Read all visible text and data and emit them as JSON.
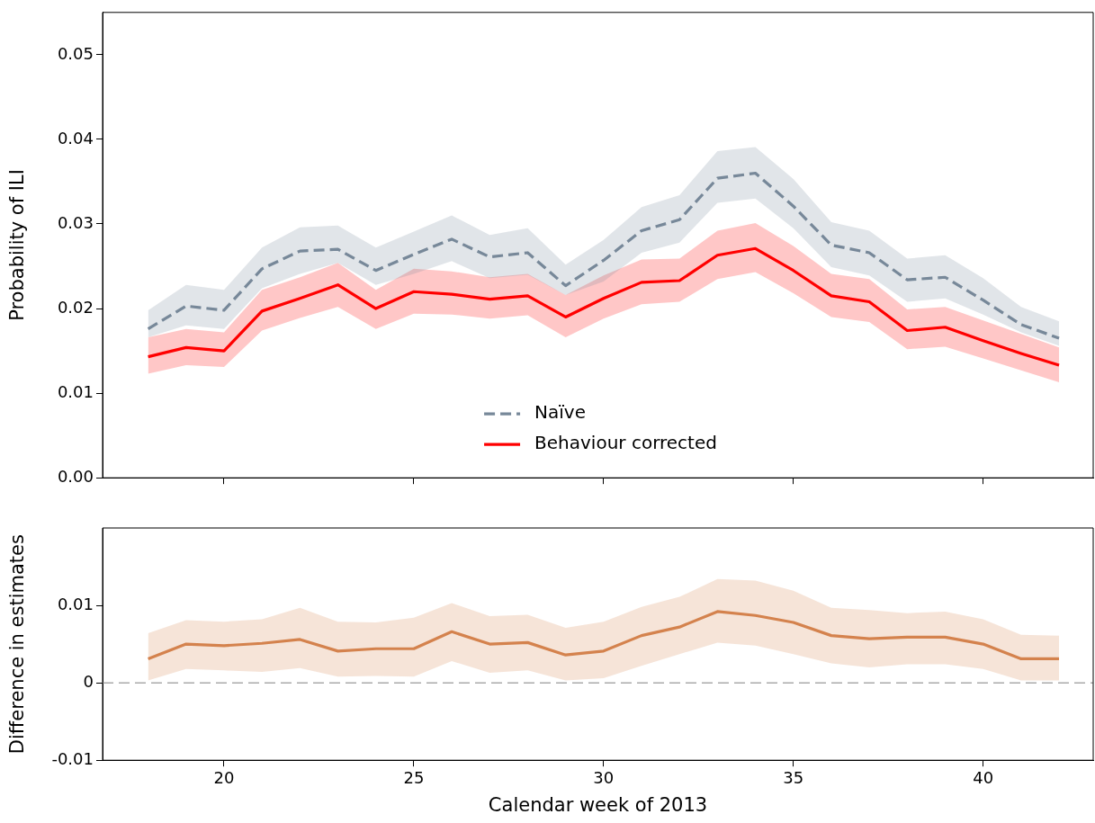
{
  "chart_data": [
    {
      "type": "line",
      "ylabel": "Probability of ILI",
      "x": [
        18,
        19,
        20,
        21,
        22,
        23,
        24,
        25,
        26,
        27,
        28,
        29,
        30,
        31,
        32,
        33,
        34,
        35,
        36,
        37,
        38,
        39,
        40,
        41,
        42
      ],
      "xlim": [
        16.8,
        42.9
      ],
      "xticks": [
        20,
        25,
        30,
        35,
        40
      ],
      "ylim": [
        0,
        0.055
      ],
      "yticks": [
        {
          "value": 0,
          "label": "0.00"
        },
        0.01,
        0.02,
        0.03,
        0.04,
        0.05
      ],
      "tick_labels": "y",
      "legend": "bottom",
      "grid": false,
      "series": [
        {
          "name": "Naïve",
          "color": "#778899",
          "line_style": "dashed",
          "values": [
            0.0176,
            0.0203,
            0.0198,
            0.0247,
            0.0268,
            0.027,
            0.0245,
            0.0264,
            0.0282,
            0.0261,
            0.0266,
            0.0227,
            0.0257,
            0.0292,
            0.0305,
            0.0354,
            0.036,
            0.0321,
            0.0275,
            0.0266,
            0.0234,
            0.0237,
            0.021,
            0.0181,
            0.0165
          ],
          "upper": [
            0.0198,
            0.0228,
            0.0222,
            0.0272,
            0.0296,
            0.0298,
            0.0272,
            0.0291,
            0.031,
            0.0287,
            0.0295,
            0.0252,
            0.0281,
            0.032,
            0.0334,
            0.0386,
            0.0391,
            0.0353,
            0.0302,
            0.0292,
            0.0259,
            0.0263,
            0.0236,
            0.0202,
            0.0185
          ],
          "lower": [
            0.0166,
            0.018,
            0.0176,
            0.0224,
            0.0241,
            0.0254,
            0.0228,
            0.0241,
            0.0256,
            0.0236,
            0.024,
            0.0216,
            0.0232,
            0.0266,
            0.0278,
            0.0325,
            0.033,
            0.0295,
            0.0249,
            0.0239,
            0.0208,
            0.0212,
            0.0193,
            0.0172,
            0.0156
          ]
        },
        {
          "name": "Behaviour corrected",
          "color": "#ff0000",
          "line_style": "solid",
          "values": [
            0.0143,
            0.0154,
            0.015,
            0.0197,
            0.0212,
            0.0228,
            0.02,
            0.022,
            0.0217,
            0.0211,
            0.0215,
            0.019,
            0.0212,
            0.0231,
            0.0233,
            0.0263,
            0.0271,
            0.0245,
            0.0215,
            0.0208,
            0.0174,
            0.0178,
            0.0162,
            0.0147,
            0.0133
          ],
          "upper": [
            0.0166,
            0.0176,
            0.0172,
            0.0222,
            0.0237,
            0.0254,
            0.0222,
            0.0247,
            0.0244,
            0.0237,
            0.0241,
            0.0216,
            0.0239,
            0.0258,
            0.0259,
            0.0292,
            0.0301,
            0.0274,
            0.0241,
            0.0235,
            0.0199,
            0.0202,
            0.0186,
            0.017,
            0.0154
          ],
          "lower": [
            0.0123,
            0.0133,
            0.0131,
            0.0174,
            0.0189,
            0.0202,
            0.0176,
            0.0194,
            0.0193,
            0.0188,
            0.0192,
            0.0166,
            0.0188,
            0.0205,
            0.0208,
            0.0235,
            0.0243,
            0.0218,
            0.019,
            0.0184,
            0.0152,
            0.0155,
            0.0141,
            0.0127,
            0.0113
          ]
        }
      ]
    },
    {
      "type": "line",
      "xlabel": "Calendar week of 2013",
      "ylabel": "Difference in estimates",
      "x": [
        18,
        19,
        20,
        21,
        22,
        23,
        24,
        25,
        26,
        27,
        28,
        29,
        30,
        31,
        32,
        33,
        34,
        35,
        36,
        37,
        38,
        39,
        40,
        41,
        42
      ],
      "xlim": [
        16.8,
        42.9
      ],
      "xticks": [
        20,
        25,
        30,
        35,
        40
      ],
      "ylim": [
        -0.01,
        0.02
      ],
      "yticks": [
        -0.01,
        0,
        0.01
      ],
      "grid": false,
      "ref_lines": [
        {
          "axis": "y",
          "value": 0,
          "color": "#aaaaaa",
          "line_style": "dashed"
        }
      ],
      "series": [
        {
          "color": "#d4824d",
          "line_style": "solid",
          "values": [
            0.0031,
            0.005,
            0.0048,
            0.0051,
            0.0056,
            0.0041,
            0.0044,
            0.0044,
            0.0066,
            0.005,
            0.0052,
            0.0036,
            0.0041,
            0.0061,
            0.0072,
            0.0092,
            0.0087,
            0.0078,
            0.0061,
            0.0057,
            0.0059,
            0.0059,
            0.005,
            0.0031,
            0.0031
          ],
          "upper": [
            0.0064,
            0.0081,
            0.0079,
            0.0082,
            0.0097,
            0.0079,
            0.0078,
            0.0084,
            0.0103,
            0.0086,
            0.0088,
            0.0071,
            0.0079,
            0.0098,
            0.0111,
            0.0134,
            0.0132,
            0.0119,
            0.0097,
            0.0094,
            0.009,
            0.0092,
            0.0082,
            0.0062,
            0.0061
          ],
          "lower": [
            0.0003,
            0.0018,
            0.0016,
            0.0014,
            0.0019,
            0.0008,
            0.0009,
            0.0008,
            0.0028,
            0.0013,
            0.0016,
            0.0003,
            0.0006,
            0.0022,
            0.0037,
            0.0052,
            0.0048,
            0.0037,
            0.0025,
            0.002,
            0.0024,
            0.0024,
            0.0018,
            0.0003,
            0.0003
          ]
        }
      ]
    }
  ]
}
